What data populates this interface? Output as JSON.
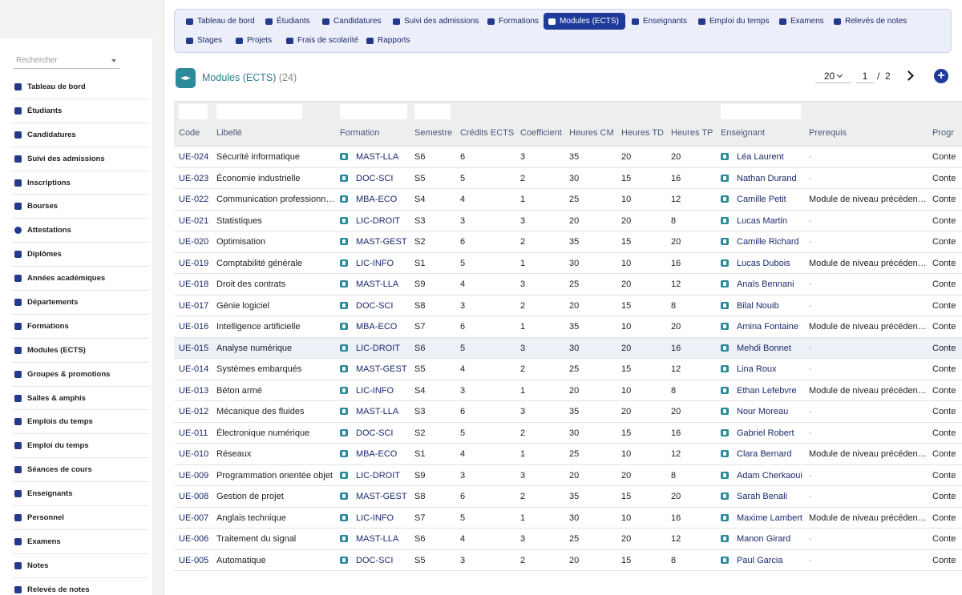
{
  "sidebar": {
    "search_placeholder": "Rechercher",
    "items": [
      {
        "label": "Tableau de bord",
        "icon": "dashboard-icon"
      },
      {
        "label": "Étudiants",
        "icon": "students-icon"
      },
      {
        "label": "Candidatures",
        "icon": "applications-icon"
      },
      {
        "label": "Suivi des admissions",
        "icon": "admissions-icon"
      },
      {
        "label": "Inscriptions",
        "icon": "registrations-icon"
      },
      {
        "label": "Bourses",
        "icon": "scholarships-icon"
      },
      {
        "label": "Attestations",
        "icon": "certificates-icon"
      },
      {
        "label": "Diplômes",
        "icon": "diplomas-icon"
      },
      {
        "label": "Années académiques",
        "icon": "calendar-icon"
      },
      {
        "label": "Départements",
        "icon": "departments-icon"
      },
      {
        "label": "Formations",
        "icon": "graduation-cap-icon"
      },
      {
        "label": "Modules (ECTS)",
        "icon": "modules-icon"
      },
      {
        "label": "Groupes & promotions",
        "icon": "groups-icon"
      },
      {
        "label": "Salles & amphis",
        "icon": "rooms-icon"
      },
      {
        "label": "Emplois du temps",
        "icon": "timetables-icon"
      },
      {
        "label": "Emploi du temps",
        "icon": "timetable-icon"
      },
      {
        "label": "Séances de cours",
        "icon": "book-icon"
      },
      {
        "label": "Enseignants",
        "icon": "teachers-icon"
      },
      {
        "label": "Personnel",
        "icon": "staff-icon"
      },
      {
        "label": "Examens",
        "icon": "exams-icon"
      },
      {
        "label": "Notes",
        "icon": "star-icon"
      },
      {
        "label": "Relevés de notes",
        "icon": "transcripts-icon"
      }
    ]
  },
  "tabs": [
    {
      "label": "Tableau de bord",
      "icon": "dashboard-icon",
      "active": false
    },
    {
      "label": "Étudiants",
      "icon": "students-icon",
      "active": false
    },
    {
      "label": "Candidatures",
      "icon": "applications-icon",
      "active": false
    },
    {
      "label": "Suivi des admissions",
      "icon": "admissions-icon",
      "active": false
    },
    {
      "label": "Formations",
      "icon": "graduation-cap-icon",
      "active": false
    },
    {
      "label": "Modules (ECTS)",
      "icon": "modules-icon",
      "active": true
    },
    {
      "label": "Enseignants",
      "icon": "teachers-icon",
      "active": false
    },
    {
      "label": "Emploi du temps",
      "icon": "timetable-icon",
      "active": false
    },
    {
      "label": "Examens",
      "icon": "exams-icon",
      "active": false
    },
    {
      "label": "Relevés de notes",
      "icon": "transcripts-icon",
      "active": false
    },
    {
      "label": "Stages",
      "icon": "internships-icon",
      "active": false
    },
    {
      "label": "Projets",
      "icon": "projects-icon",
      "active": false
    },
    {
      "label": "Frais de scolarité",
      "icon": "fees-icon",
      "active": false
    },
    {
      "label": "Rapports",
      "icon": "reports-icon",
      "active": false
    }
  ],
  "header": {
    "title": "Modules (ECTS)",
    "count": "(24)",
    "page_size": "20",
    "current_page": "1",
    "page_sep": "/",
    "total_pages": "2",
    "add_label": "+"
  },
  "table": {
    "columns": [
      "Code",
      "Libellé",
      "Formation",
      "Semestre",
      "Crédits ECTS",
      "Coefficient",
      "Heures CM",
      "Heures TD",
      "Heures TP",
      "Enseignant",
      "Prerequis",
      "Progr"
    ],
    "rows": [
      {
        "code": "UE-024",
        "libelle": "Sécurité informatique",
        "formation": "MAST-LLA",
        "semestre": "S6",
        "credits": "6",
        "coef": "3",
        "cm": "35",
        "td": "20",
        "tp": "20",
        "enseignant": "Léa Laurent",
        "prerequis": "-",
        "prog": "Conte"
      },
      {
        "code": "UE-023",
        "libelle": "Économie industrielle",
        "formation": "DOC-SCI",
        "semestre": "S5",
        "credits": "5",
        "coef": "2",
        "cm": "30",
        "td": "15",
        "tp": "16",
        "enseignant": "Nathan Durand",
        "prerequis": "-",
        "prog": "Conte"
      },
      {
        "code": "UE-022",
        "libelle": "Communication professionn…",
        "formation": "MBA-ECO",
        "semestre": "S4",
        "credits": "4",
        "coef": "1",
        "cm": "25",
        "td": "10",
        "tp": "12",
        "enseignant": "Camille Petit",
        "prerequis": "Module de niveau précéden…",
        "prog": "Conte"
      },
      {
        "code": "UE-021",
        "libelle": "Statistiques",
        "formation": "LIC-DROIT",
        "semestre": "S3",
        "credits": "3",
        "coef": "3",
        "cm": "20",
        "td": "20",
        "tp": "8",
        "enseignant": "Lucas Martin",
        "prerequis": "-",
        "prog": "Conte"
      },
      {
        "code": "UE-020",
        "libelle": "Optimisation",
        "formation": "MAST-GEST",
        "semestre": "S2",
        "credits": "6",
        "coef": "2",
        "cm": "35",
        "td": "15",
        "tp": "20",
        "enseignant": "Camille Richard",
        "prerequis": "-",
        "prog": "Conte"
      },
      {
        "code": "UE-019",
        "libelle": "Comptabilité générale",
        "formation": "LIC-INFO",
        "semestre": "S1",
        "credits": "5",
        "coef": "1",
        "cm": "30",
        "td": "10",
        "tp": "16",
        "enseignant": "Lucas Dubois",
        "prerequis": "Module de niveau précéden…",
        "prog": "Conte"
      },
      {
        "code": "UE-018",
        "libelle": "Droit des contrats",
        "formation": "MAST-LLA",
        "semestre": "S9",
        "credits": "4",
        "coef": "3",
        "cm": "25",
        "td": "20",
        "tp": "12",
        "enseignant": "Anaïs Bennani",
        "prerequis": "-",
        "prog": "Conte"
      },
      {
        "code": "UE-017",
        "libelle": "Génie logiciel",
        "formation": "DOC-SCI",
        "semestre": "S8",
        "credits": "3",
        "coef": "2",
        "cm": "20",
        "td": "15",
        "tp": "8",
        "enseignant": "Bilal Nouib",
        "prerequis": "-",
        "prog": "Conte"
      },
      {
        "code": "UE-016",
        "libelle": "Intelligence artificielle",
        "formation": "MBA-ECO",
        "semestre": "S7",
        "credits": "6",
        "coef": "1",
        "cm": "35",
        "td": "10",
        "tp": "20",
        "enseignant": "Amina Fontaine",
        "prerequis": "Module de niveau précéden…",
        "prog": "Conte"
      },
      {
        "code": "UE-015",
        "libelle": "Analyse numérique",
        "formation": "LIC-DROIT",
        "semestre": "S6",
        "credits": "5",
        "coef": "3",
        "cm": "30",
        "td": "20",
        "tp": "16",
        "enseignant": "Mehdi Bonnet",
        "prerequis": "-",
        "prog": "Conte",
        "highlight": true
      },
      {
        "code": "UE-014",
        "libelle": "Systèmes embarqués",
        "formation": "MAST-GEST",
        "semestre": "S5",
        "credits": "4",
        "coef": "2",
        "cm": "25",
        "td": "15",
        "tp": "12",
        "enseignant": "Lina Roux",
        "prerequis": "-",
        "prog": "Conte"
      },
      {
        "code": "UE-013",
        "libelle": "Béton armé",
        "formation": "LIC-INFO",
        "semestre": "S4",
        "credits": "3",
        "coef": "1",
        "cm": "20",
        "td": "10",
        "tp": "8",
        "enseignant": "Ethan Lefebvre",
        "prerequis": "Module de niveau précéden…",
        "prog": "Conte"
      },
      {
        "code": "UE-012",
        "libelle": "Mécanique des fluides",
        "formation": "MAST-LLA",
        "semestre": "S3",
        "credits": "6",
        "coef": "3",
        "cm": "35",
        "td": "20",
        "tp": "20",
        "enseignant": "Nour Moreau",
        "prerequis": "-",
        "prog": "Conte"
      },
      {
        "code": "UE-011",
        "libelle": "Électronique numérique",
        "formation": "DOC-SCI",
        "semestre": "S2",
        "credits": "5",
        "coef": "2",
        "cm": "30",
        "td": "15",
        "tp": "16",
        "enseignant": "Gabriel Robert",
        "prerequis": "-",
        "prog": "Conte"
      },
      {
        "code": "UE-010",
        "libelle": "Réseaux",
        "formation": "MBA-ECO",
        "semestre": "S1",
        "credits": "4",
        "coef": "1",
        "cm": "25",
        "td": "10",
        "tp": "12",
        "enseignant": "Clara Bernard",
        "prerequis": "Module de niveau précéden…",
        "prog": "Conte"
      },
      {
        "code": "UE-009",
        "libelle": "Programmation orientée objet",
        "formation": "LIC-DROIT",
        "semestre": "S9",
        "credits": "3",
        "coef": "3",
        "cm": "20",
        "td": "20",
        "tp": "8",
        "enseignant": "Adam Cherkaoui",
        "prerequis": "-",
        "prog": "Conte"
      },
      {
        "code": "UE-008",
        "libelle": "Gestion de projet",
        "formation": "MAST-GEST",
        "semestre": "S8",
        "credits": "6",
        "coef": "2",
        "cm": "35",
        "td": "15",
        "tp": "20",
        "enseignant": "Sarah Benali",
        "prerequis": "-",
        "prog": "Conte"
      },
      {
        "code": "UE-007",
        "libelle": "Anglais technique",
        "formation": "LIC-INFO",
        "semestre": "S7",
        "credits": "5",
        "coef": "1",
        "cm": "30",
        "td": "10",
        "tp": "16",
        "enseignant": "Maxime Lambert",
        "prerequis": "Module de niveau précéden…",
        "prog": "Conte"
      },
      {
        "code": "UE-006",
        "libelle": "Traitement du signal",
        "formation": "MAST-LLA",
        "semestre": "S6",
        "credits": "4",
        "coef": "3",
        "cm": "25",
        "td": "20",
        "tp": "12",
        "enseignant": "Manon Girard",
        "prerequis": "-",
        "prog": "Conte"
      },
      {
        "code": "UE-005",
        "libelle": "Automatique",
        "formation": "DOC-SCI",
        "semestre": "S5",
        "credits": "3",
        "coef": "2",
        "cm": "20",
        "td": "15",
        "tp": "8",
        "enseignant": "Paul Garcia",
        "prerequis": "-",
        "prog": "Conte"
      }
    ]
  },
  "colors": {
    "accent": "#1e3a9b",
    "teal": "#2a8a9a",
    "tabbar_bg": "#eceff9"
  }
}
